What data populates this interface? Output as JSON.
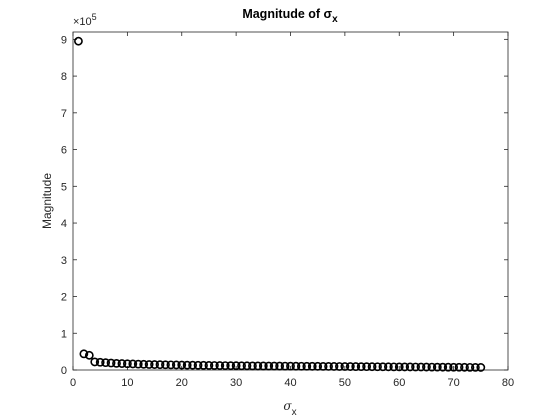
{
  "chart_data": {
    "type": "scatter",
    "title": "Magnitude of σ",
    "title_subscript": "x",
    "xlabel": "σ",
    "xlabel_subscript": "x",
    "ylabel": "Magnitude",
    "y_exponent_prefix": "×10",
    "y_exponent": "5",
    "xlim": [
      0,
      80
    ],
    "ylim": [
      0,
      9.2
    ],
    "xticks": [
      0,
      10,
      20,
      30,
      40,
      50,
      60,
      70,
      80
    ],
    "yticks": [
      0,
      1,
      2,
      3,
      4,
      5,
      6,
      7,
      8,
      9
    ],
    "grid": false,
    "marker": "circle-open",
    "marker_color": "#000000",
    "x": [
      1,
      2,
      3,
      4,
      5,
      6,
      7,
      8,
      9,
      10,
      11,
      12,
      13,
      14,
      15,
      16,
      17,
      18,
      19,
      20,
      21,
      22,
      23,
      24,
      25,
      26,
      27,
      28,
      29,
      30,
      31,
      32,
      33,
      34,
      35,
      36,
      37,
      38,
      39,
      40,
      41,
      42,
      43,
      44,
      45,
      46,
      47,
      48,
      49,
      50,
      51,
      52,
      53,
      54,
      55,
      56,
      57,
      58,
      59,
      60,
      61,
      62,
      63,
      64,
      65,
      66,
      67,
      68,
      69,
      70,
      71,
      72,
      73,
      74,
      75
    ],
    "values": [
      8.95,
      0.44,
      0.4,
      0.22,
      0.21,
      0.2,
      0.19,
      0.18,
      0.175,
      0.17,
      0.165,
      0.16,
      0.155,
      0.15,
      0.148,
      0.145,
      0.143,
      0.14,
      0.138,
      0.135,
      0.133,
      0.131,
      0.129,
      0.127,
      0.125,
      0.123,
      0.121,
      0.12,
      0.118,
      0.117,
      0.115,
      0.114,
      0.112,
      0.111,
      0.11,
      0.109,
      0.108,
      0.107,
      0.106,
      0.105,
      0.104,
      0.103,
      0.102,
      0.101,
      0.1,
      0.099,
      0.098,
      0.097,
      0.096,
      0.095,
      0.094,
      0.093,
      0.092,
      0.091,
      0.09,
      0.089,
      0.088,
      0.087,
      0.086,
      0.085,
      0.084,
      0.083,
      0.082,
      0.081,
      0.08,
      0.079,
      0.078,
      0.077,
      0.076,
      0.075,
      0.074,
      0.073,
      0.072,
      0.071,
      0.07
    ]
  }
}
